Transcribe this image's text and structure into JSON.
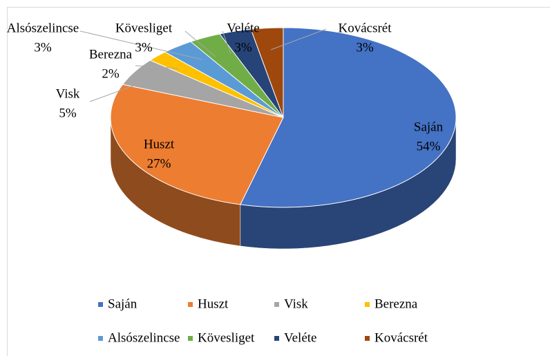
{
  "chart_data": {
    "type": "pie3d",
    "categories": [
      "Saján",
      "Huszt",
      "Visk",
      "Berezna",
      "Alsószelincse",
      "Kövesliget",
      "Veléte",
      "Kovácsrét"
    ],
    "values": [
      54,
      27,
      5,
      2,
      3,
      3,
      3,
      3
    ],
    "value_labels": [
      "54%",
      "27%",
      "5%",
      "2%",
      "3%",
      "3%",
      "3%",
      "3%"
    ],
    "colors": [
      "#4472c4",
      "#ed7d31",
      "#a5a5a5",
      "#ffc000",
      "#5b9bd5",
      "#70ad47",
      "#264478",
      "#9e480e"
    ],
    "legend": "bottom"
  }
}
